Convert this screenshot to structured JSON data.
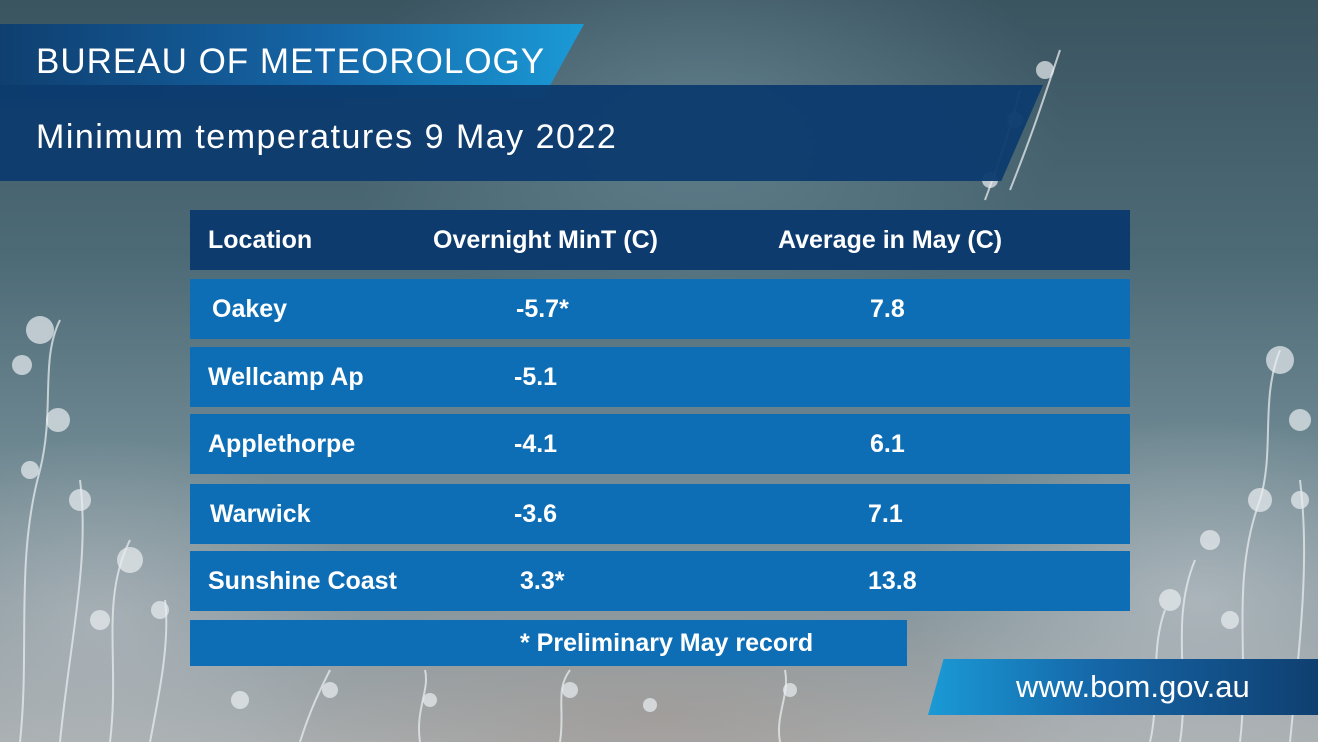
{
  "brand": "BUREAU OF METEOROLOGY",
  "title": "Minimum temperatures 9 May 2022",
  "table": {
    "headers": [
      "Location",
      "Overnight MinT (C)",
      "Average in May (C)"
    ],
    "rows": [
      {
        "location": "Oakey",
        "min": "-5.7*",
        "avg": "7.8"
      },
      {
        "location": "Wellcamp Ap",
        "min": "-5.1",
        "avg": ""
      },
      {
        "location": "Applethorpe",
        "min": "-4.1",
        "avg": "6.1"
      },
      {
        "location": "Warwick",
        "min": "-3.6",
        "avg": "7.1"
      },
      {
        "location": "Sunshine Coast",
        "min": "3.3*",
        "avg": "13.8"
      }
    ],
    "note": "* Preliminary May record"
  },
  "website": "www.bom.gov.au",
  "colors": {
    "dark_navy": "#0d3b6e",
    "row_blue": "#0e6eb5",
    "accent_cyan": "#1a9ad6",
    "text": "#ffffff"
  }
}
